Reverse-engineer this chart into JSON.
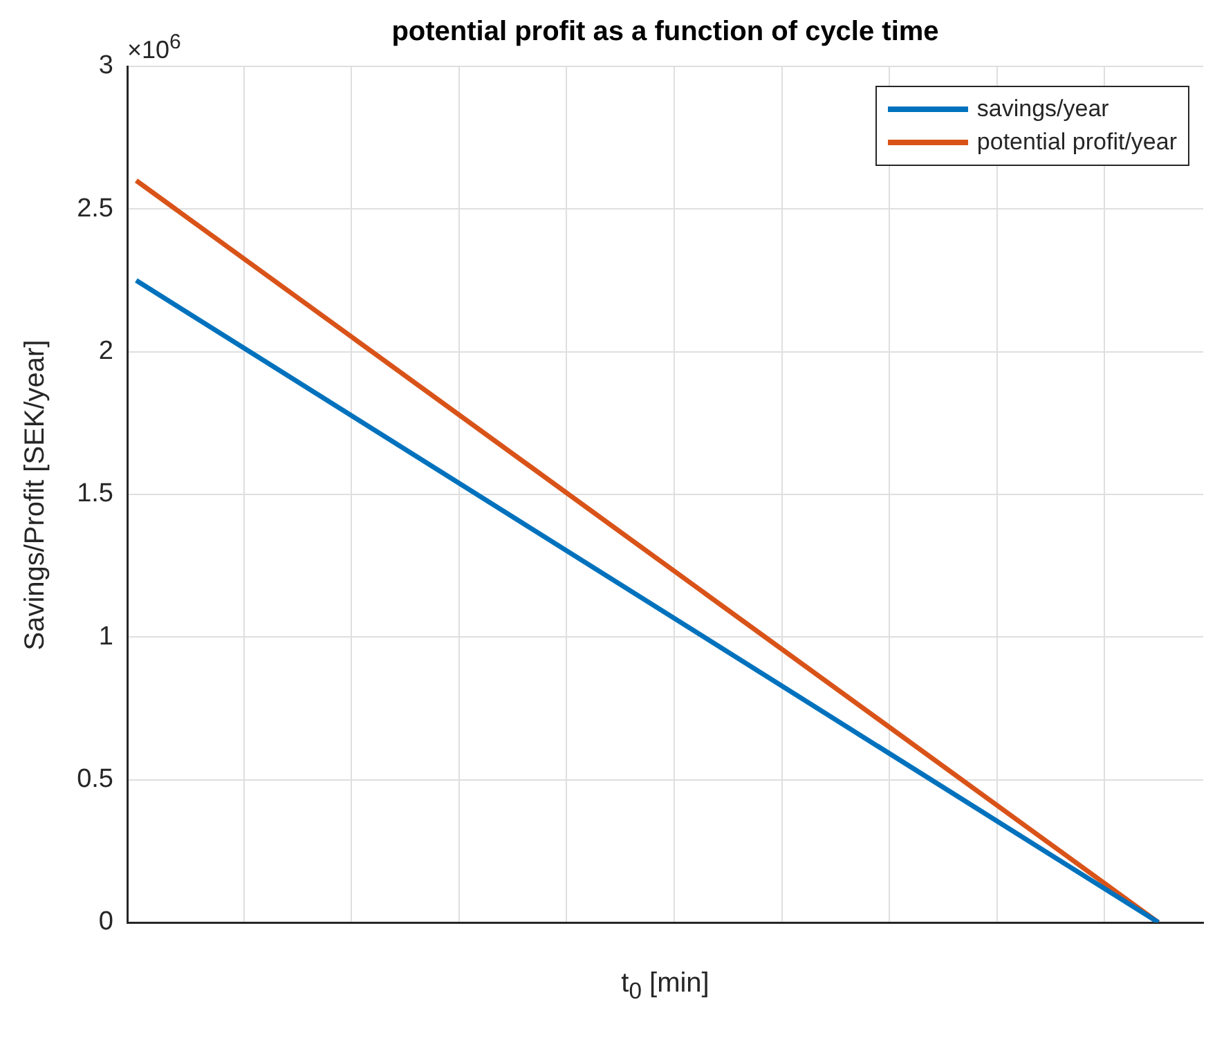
{
  "chart_data": {
    "type": "line",
    "title": "potential profit as a function of cycle time",
    "xlabel": "t$_{0}$ [min]",
    "ylabel": "Savings/Profit [SEK/year]",
    "annotations": [
      "×10$^{6}$"
    ],
    "categories": [
      null,
      null,
      null,
      null,
      null,
      null,
      null,
      null,
      null,
      null,
      null,
      null,
      null,
      null,
      null,
      null,
      null,
      null,
      null,
      null,
      null,
      null,
      null,
      null,
      null,
      null,
      null,
      null,
      null,
      null,
      null,
      null,
      null,
      null,
      null,
      null,
      null,
      null,
      null,
      null,
      null,
      null,
      null,
      null,
      null,
      null,
      null,
      null,
      null,
      null,
      null,
      null,
      null,
      null,
      null,
      null,
      null,
      null,
      null,
      null
    ],
    "series": [
      {
        "name": "savings/year",
        "color": "#0072bd",
        "values": [
          2.25,
          null,
          null,
          null,
          null,
          null,
          null,
          null,
          null,
          null,
          null,
          null,
          null,
          null,
          null,
          null,
          null,
          null,
          null,
          null,
          null,
          null,
          null,
          null,
          null,
          null,
          null,
          null,
          null,
          null,
          null,
          null,
          null,
          null,
          null,
          null,
          null,
          null,
          null,
          null,
          null,
          null,
          null,
          null,
          null,
          null,
          null,
          null,
          null,
          null,
          null,
          null,
          null,
          null,
          null,
          null,
          null,
          0,
          null,
          null
        ]
      },
      {
        "name": "potential profit/year",
        "color": "#d95319",
        "values": [
          2.6,
          null,
          null,
          null,
          null,
          null,
          null,
          null,
          null,
          null,
          null,
          null,
          null,
          null,
          null,
          null,
          null,
          null,
          null,
          null,
          null,
          null,
          null,
          null,
          null,
          null,
          null,
          null,
          null,
          null,
          null,
          null,
          null,
          null,
          null,
          null,
          null,
          null,
          null,
          null,
          null,
          null,
          null,
          null,
          null,
          null,
          null,
          null,
          null,
          null,
          null,
          null,
          null,
          null,
          null,
          null,
          null,
          0,
          null,
          null
        ]
      }
    ],
    "ylim": [
      0,
      3
    ],
    "yticks": [
      0,
      0.5,
      1,
      1.5,
      2,
      2.5,
      3
    ],
    "tick_labels": "y",
    "grid": true,
    "legend": "top right",
    "marker": "none"
  }
}
